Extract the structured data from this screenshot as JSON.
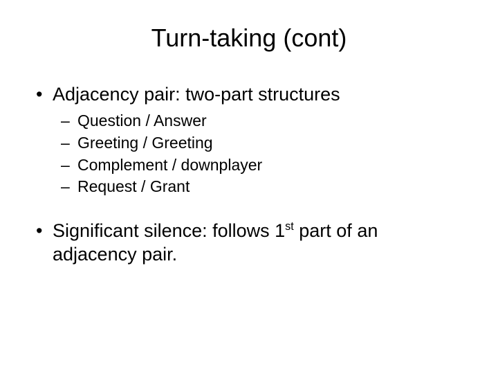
{
  "slide": {
    "title": "Turn-taking (cont)",
    "bullets": [
      {
        "level": 1,
        "text": "Adjacency pair: two-part structures"
      },
      {
        "level": 2,
        "text": "Question / Answer"
      },
      {
        "level": 2,
        "text": "Greeting / Greeting"
      },
      {
        "level": 2,
        "text": "Complement / downplayer"
      },
      {
        "level": 2,
        "text": "Request / Grant"
      }
    ],
    "bullet2_pre": "Significant silence: follows 1",
    "bullet2_sup": "st",
    "bullet2_post": " part of an adjacency pair."
  },
  "style": {
    "background_color": "#ffffff",
    "text_color": "#000000",
    "title_fontsize": 36,
    "level1_fontsize": 27,
    "level2_fontsize": 23,
    "font_family": "Arial"
  }
}
